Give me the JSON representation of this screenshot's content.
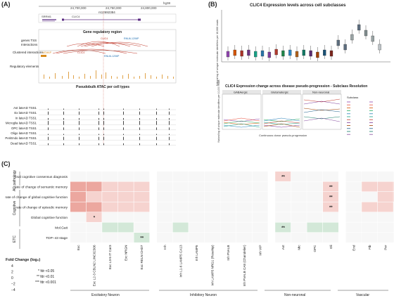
{
  "panels": {
    "A": {
      "label": "(A)",
      "coords": [
        "24,700,000",
        "24,750,000",
        "24,800,000"
      ],
      "genome": "hg38",
      "rsid": "rs12692384",
      "genes_top": [
        "SRRM1",
        "CLIC4"
      ],
      "section_gene_regulatory": "Gene regulatory region",
      "track_genes_tss": "genes TSS",
      "track_interactions": "Interactions",
      "track_clustered": "Clustered interactions",
      "track_regulatory": "Regulatory elements",
      "cluster_genes": [
        "NCMAP",
        "CLIC4",
        "RNU6-1206P",
        "CLIC4",
        "RNU6-1206P"
      ],
      "section_pseudobulk": "Pseudobulk ATAC per cell types",
      "atac_tracks": [
        "Ast lateAD TSS1",
        "Ex lateAD TSS1",
        "In lateAD TSS1",
        "Microglia lateAD TSS1",
        "OPC lateAD TSS1",
        "Oligo lateAD TSS1",
        "PeriEndo lateAD TSS1",
        "Dead lateAD TSS1"
      ],
      "colors": {
        "interaction": "#c0392b",
        "regulatory": "#d98c1c",
        "atac": "#333333",
        "gene": "#5b2c83"
      }
    },
    "B": {
      "label": "(B)",
      "title_top": "CLIC4 Expression levels across cell subclasses",
      "ylabel_top": "Natural log of unique molecular identifiers per 10,000 reads",
      "title_bottom": "CLIC4 Expression change across disease pseudo-progression - Subclass Resolution",
      "facets": [
        "GABAergic",
        "Glutamatergic",
        "Non-neuronal"
      ],
      "xlabel_bottom": "Continuous donor pseudo-progression",
      "ylabel_bottom": "Natural log of unique molecular identifiers per 10,000 reads",
      "legend_title": "Subclass"
    },
    "C": {
      "label": "(C)",
      "legend_title": "Fold Change (log₂)",
      "legend_ticks": [
        "4",
        "2",
        "0",
        "−2",
        "−4"
      ],
      "sig_legend": [
        "* fdr <0.05",
        "** fdr <0.01",
        "*** fdr <0.001"
      ],
      "groups_left": [
        "AD pathology",
        "Cognitive",
        "ETC"
      ],
      "rows": [
        "final cognitive consensus diagnosis",
        "rate of change of semantic memory",
        "rate of change of global cognitive function",
        "rate of change of episodic memory",
        "Global cognitive function",
        "Mol.Gait",
        "TDP−43 stage"
      ],
      "columns": [
        "Exc",
        "Exc L2-3 CBLN2 LINC02306",
        "Exc L3-5 IT Car3",
        "Exc NRGN",
        "Exc RELN CHD7",
        "Inh",
        "Inh L1-6 LAMP5 CA13",
        "Inh LAMP5",
        "Inh LAMP5 NRG1 (Rosehip)",
        "Inh PVALB",
        "Inh PVALB CA8 (Chandelier)",
        "Inh VIP",
        "Ast",
        "Mic",
        "OPC",
        "Oli",
        "End",
        "Fib",
        "Per",
        "SMC"
      ],
      "groups_bottom": [
        "Excitatory Neuron",
        "Inhibitory Neuron",
        "Non-neuronal",
        "Vascular"
      ],
      "cells": [
        [
          0,
          0,
          0,
          0,
          0,
          0,
          0,
          0,
          0,
          0,
          0,
          0,
          1,
          0,
          0,
          0,
          0,
          0,
          0,
          0
        ],
        [
          2,
          2,
          1,
          1,
          1,
          0,
          0,
          0,
          0,
          0,
          0,
          0,
          0,
          0,
          0,
          1,
          0,
          1,
          1,
          1
        ],
        [
          2,
          1,
          1,
          1,
          1,
          0,
          0,
          0,
          0,
          0,
          0,
          0,
          0,
          0,
          0,
          1,
          0,
          0,
          1,
          1
        ],
        [
          2,
          2,
          1,
          1,
          1,
          0,
          0,
          0,
          0,
          0,
          0,
          0,
          0,
          0,
          0,
          1,
          0,
          1,
          1,
          0
        ],
        [
          0,
          1,
          0,
          0,
          0,
          0,
          0,
          0,
          0,
          0,
          0,
          0,
          0,
          0,
          0,
          0,
          0,
          0,
          0,
          0
        ],
        [
          0,
          0,
          -1,
          -1,
          0,
          0,
          -1,
          0,
          0,
          0,
          0,
          0,
          -1,
          0,
          -1,
          -1,
          0,
          0,
          0,
          0
        ],
        [
          0,
          0,
          0,
          0,
          -1,
          0,
          0,
          0,
          0,
          0,
          0,
          0,
          0,
          0,
          0,
          0,
          0,
          0,
          0,
          0
        ]
      ],
      "stars": [
        {
          "r": 0,
          "c": 12,
          "s": "**"
        },
        {
          "r": 1,
          "c": 15,
          "s": "**"
        },
        {
          "r": 2,
          "c": 15,
          "s": "**"
        },
        {
          "r": 3,
          "c": 15,
          "s": "**"
        },
        {
          "r": 4,
          "c": 1,
          "s": "*"
        },
        {
          "r": 5,
          "c": 12,
          "s": "**"
        },
        {
          "r": 6,
          "c": 4,
          "s": "**"
        }
      ],
      "colors": {
        "pos1": "#f6d3cf",
        "pos2": "#eca79f",
        "neg1": "#d3e8d8"
      }
    }
  }
}
